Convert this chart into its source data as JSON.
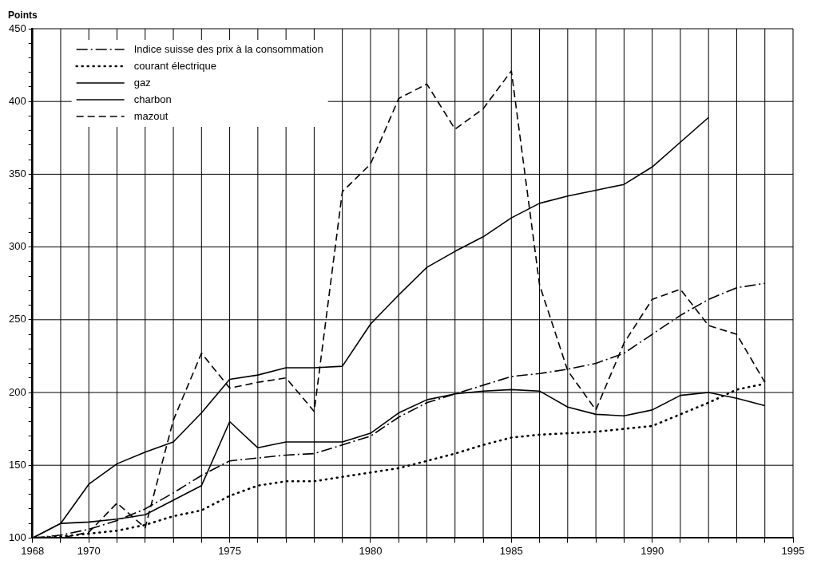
{
  "chart_data": {
    "type": "line",
    "ylabel": "Points",
    "x": [
      1968,
      1969,
      1970,
      1971,
      1972,
      1973,
      1974,
      1975,
      1976,
      1977,
      1978,
      1979,
      1980,
      1981,
      1982,
      1983,
      1984,
      1985,
      1986,
      1987,
      1988,
      1989,
      1990,
      1991,
      1992,
      1993,
      1994
    ],
    "series": [
      {
        "name": "Indice suisse des prix à la consommation",
        "color": "#000000",
        "line_style": "dashdot",
        "values": [
          100,
          102,
          106,
          112,
          120,
          131,
          143,
          153,
          155,
          157,
          158,
          164,
          170,
          183,
          193,
          199,
          205,
          211,
          213,
          216,
          220,
          227,
          240,
          253,
          264,
          272,
          275
        ]
      },
      {
        "name": "courant électrique",
        "color": "#000000",
        "line_style": "dotted",
        "values": [
          100,
          101,
          103,
          105,
          109,
          115,
          119,
          129,
          136,
          139,
          139,
          142,
          145,
          148,
          153,
          158,
          164,
          169,
          171,
          172,
          173,
          175,
          177,
          185,
          193,
          202,
          206
        ]
      },
      {
        "name": "gaz",
        "color": "#000000",
        "line_style": "solid",
        "values": [
          100,
          110,
          111,
          113,
          116,
          126,
          136,
          180,
          162,
          166,
          166,
          166,
          172,
          186,
          195,
          199,
          201,
          202,
          201,
          190,
          185,
          184,
          188,
          198,
          200,
          196,
          191
        ]
      },
      {
        "name": "charbon",
        "color": "#000000",
        "line_style": "solid",
        "values": [
          100,
          110,
          137,
          151,
          159,
          166,
          186,
          209,
          212,
          217,
          217,
          218,
          247,
          267,
          286,
          297,
          307,
          320,
          330,
          335,
          339,
          343,
          355,
          372,
          389,
          null,
          null
        ]
      },
      {
        "name": "mazout",
        "color": "#000000",
        "line_style": "dashed",
        "values": [
          100,
          100,
          104,
          124,
          107,
          181,
          227,
          203,
          207,
          210,
          187,
          338,
          357,
          402,
          412,
          381,
          395,
          421,
          274,
          215,
          188,
          234,
          264,
          271,
          246,
          240,
          207
        ]
      }
    ],
    "xlim": [
      1968,
      1995
    ],
    "xticks": [
      1968,
      {
        "value": 1969,
        "label": null
      },
      1970,
      {
        "value": 1971,
        "label": null
      },
      {
        "value": 1972,
        "label": null
      },
      {
        "value": 1973,
        "label": null
      },
      {
        "value": 1974,
        "label": null
      },
      1975,
      {
        "value": 1976,
        "label": null
      },
      {
        "value": 1977,
        "label": null
      },
      {
        "value": 1978,
        "label": null
      },
      {
        "value": 1979,
        "label": null
      },
      1980,
      {
        "value": 1981,
        "label": null
      },
      {
        "value": 1982,
        "label": null
      },
      {
        "value": 1983,
        "label": null
      },
      {
        "value": 1984,
        "label": null
      },
      1985,
      {
        "value": 1986,
        "label": null
      },
      {
        "value": 1987,
        "label": null
      },
      {
        "value": 1988,
        "label": null
      },
      {
        "value": 1989,
        "label": null
      },
      1990,
      {
        "value": 1991,
        "label": null
      },
      {
        "value": 1992,
        "label": null
      },
      {
        "value": 1993,
        "label": null
      },
      {
        "value": 1994,
        "label": null
      },
      1995
    ],
    "ylim": [
      100,
      450
    ],
    "yticks": [
      100,
      {
        "value": 110,
        "label": null
      },
      {
        "value": 120,
        "label": null
      },
      {
        "value": 130,
        "label": null
      },
      {
        "value": 140,
        "label": null
      },
      150,
      {
        "value": 160,
        "label": null
      },
      {
        "value": 170,
        "label": null
      },
      {
        "value": 180,
        "label": null
      },
      {
        "value": 190,
        "label": null
      },
      200,
      {
        "value": 210,
        "label": null
      },
      {
        "value": 220,
        "label": null
      },
      {
        "value": 230,
        "label": null
      },
      {
        "value": 240,
        "label": null
      },
      250,
      {
        "value": 260,
        "label": null
      },
      {
        "value": 270,
        "label": null
      },
      {
        "value": 280,
        "label": null
      },
      {
        "value": 290,
        "label": null
      },
      300,
      {
        "value": 310,
        "label": null
      },
      {
        "value": 320,
        "label": null
      },
      {
        "value": 330,
        "label": null
      },
      {
        "value": 340,
        "label": null
      },
      350,
      {
        "value": 360,
        "label": null
      },
      {
        "value": 370,
        "label": null
      },
      {
        "value": 380,
        "label": null
      },
      {
        "value": 390,
        "label": null
      },
      400,
      {
        "value": 410,
        "label": null
      },
      {
        "value": 420,
        "label": null
      },
      {
        "value": 430,
        "label": null
      },
      {
        "value": 440,
        "label": null
      },
      450
    ],
    "grid": true,
    "legend": "top left",
    "marker": "none"
  }
}
